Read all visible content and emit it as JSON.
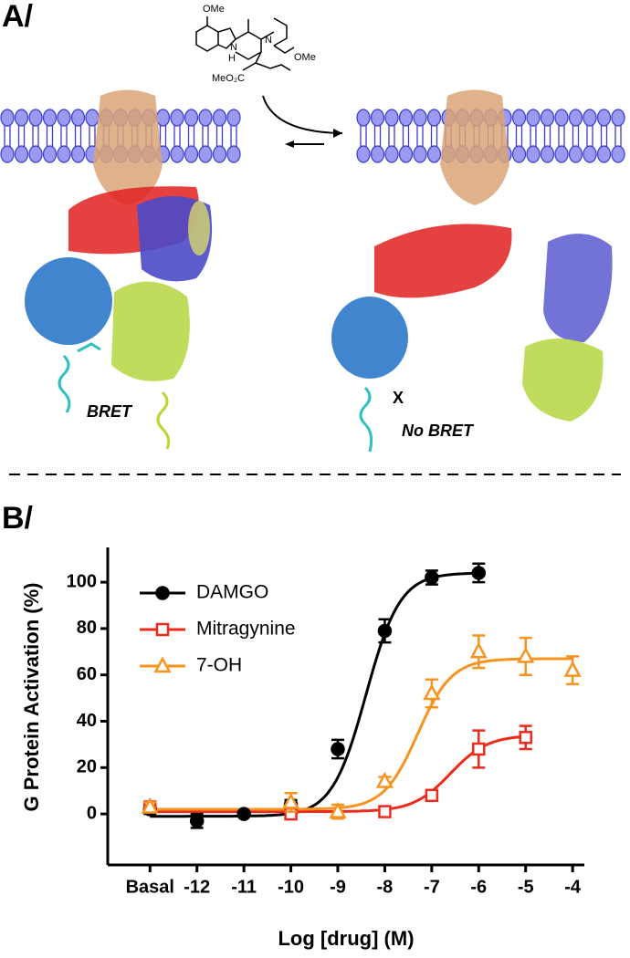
{
  "panel_a": {
    "label": "A/",
    "structure_labels": [
      "OMe",
      "N",
      "H",
      "N",
      "MeO₂C",
      "OMe"
    ],
    "bret": "BRET",
    "blocked_mark": "X",
    "no_bret": "No BRET"
  },
  "chart_data": {
    "type": "scatter",
    "panel_label": "B/",
    "x_label": "Log [drug] (M)",
    "y_label": "G Protein Activation (%)",
    "xlim": [
      -13.9,
      -3.75
    ],
    "ylim": [
      -22,
      115
    ],
    "xticks": [
      {
        "value": -13,
        "label": "Basal"
      },
      -12,
      -11,
      -10,
      -9,
      -8,
      -7,
      -6,
      -5,
      -4
    ],
    "yticks": [
      0,
      20,
      40,
      60,
      80,
      100
    ],
    "grid": false,
    "legend": "upper left",
    "series": [
      {
        "name": "DAMGO",
        "color": "#000000",
        "marker": "circle",
        "x": [
          -13,
          -12,
          -11,
          -10,
          -9,
          -8,
          -7,
          -6
        ],
        "values": [
          2,
          -3,
          0,
          4,
          28,
          79,
          102,
          104
        ],
        "errors": [
          2,
          3,
          1,
          2,
          4,
          5,
          3,
          4
        ],
        "fit": {
          "bottom": -1,
          "top": 104,
          "log_ec50": -8.4,
          "hill": 1.2
        }
      },
      {
        "name": "Mitragynine",
        "color": "#ee2a1b",
        "marker": "square",
        "x": [
          -13,
          -10,
          -8,
          -7,
          -6,
          -5
        ],
        "values": [
          3,
          0,
          1,
          8,
          28,
          33
        ],
        "errors": [
          2,
          1,
          1,
          2,
          8,
          5
        ],
        "fit": {
          "bottom": 1,
          "top": 34,
          "log_ec50": -6.6,
          "hill": 1.1
        }
      },
      {
        "name": "7-OH",
        "color": "#f7931e",
        "marker": "triangle",
        "x": [
          -13,
          -10,
          -9,
          -8,
          -7,
          -6,
          -5,
          -4
        ],
        "values": [
          3,
          5,
          1,
          14,
          52,
          70,
          68,
          62
        ],
        "errors": [
          2,
          4,
          3,
          2,
          6,
          7,
          8,
          6
        ],
        "fit": {
          "bottom": 2,
          "top": 67,
          "log_ec50": -7.3,
          "hill": 1.2
        }
      }
    ]
  }
}
